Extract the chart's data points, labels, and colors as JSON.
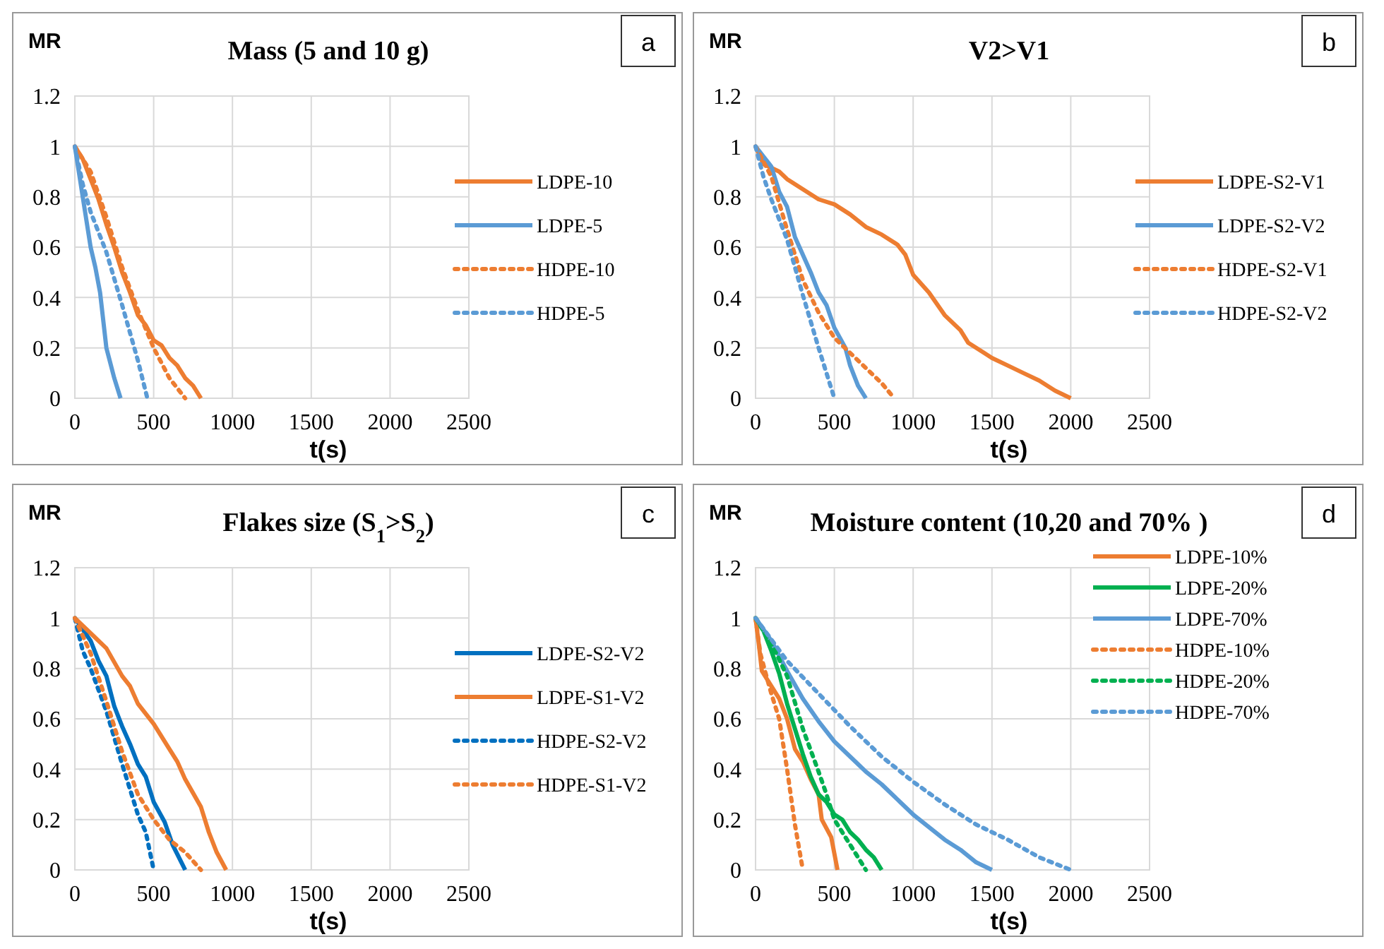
{
  "chart_data": [
    {
      "type": "line",
      "title": "Mass (5 and 10 g)",
      "ylabel": "MR",
      "xlabel": "t(s)",
      "annotations": [
        "a"
      ],
      "xlim": [
        0,
        2500
      ],
      "xticks": [
        0,
        500,
        1000,
        1500,
        2000,
        2500
      ],
      "ylim": [
        0,
        1.2
      ],
      "yticks": [
        0,
        0.2,
        0.4,
        0.6,
        0.8,
        1,
        1.2
      ],
      "grid": true,
      "legend": "right",
      "marker": "none",
      "series": [
        {
          "name": "LDPE-10",
          "color": "#ed7d31",
          "line_style": "solid",
          "x": [
            0,
            50,
            100,
            150,
            200,
            250,
            300,
            350,
            400,
            450,
            500,
            550,
            600,
            650,
            700,
            750,
            800
          ],
          "values": [
            1,
            0.95,
            0.87,
            0.79,
            0.69,
            0.6,
            0.5,
            0.42,
            0.33,
            0.29,
            0.23,
            0.21,
            0.16,
            0.13,
            0.08,
            0.05,
            0
          ]
        },
        {
          "name": "LDPE-5",
          "color": "#5b9bd5",
          "line_style": "solid",
          "x": [
            0,
            50,
            100,
            130,
            160,
            200,
            250,
            290
          ],
          "values": [
            1,
            0.8,
            0.6,
            0.52,
            0.42,
            0.2,
            0.08,
            0
          ]
        },
        {
          "name": "HDPE-10",
          "color": "#ed7d31",
          "line_style": "dotted",
          "x": [
            0,
            100,
            200,
            300,
            400,
            500,
            600,
            700
          ],
          "values": [
            1,
            0.9,
            0.72,
            0.52,
            0.35,
            0.2,
            0.08,
            0
          ]
        },
        {
          "name": "HDPE-5",
          "color": "#5b9bd5",
          "line_style": "dotted",
          "x": [
            0,
            50,
            100,
            200,
            300,
            400,
            460
          ],
          "values": [
            1,
            0.85,
            0.74,
            0.58,
            0.37,
            0.15,
            0
          ]
        }
      ]
    },
    {
      "type": "line",
      "title": "V2>V1",
      "ylabel": "MR",
      "xlabel": "t(s)",
      "annotations": [
        "b"
      ],
      "xlim": [
        0,
        2500
      ],
      "xticks": [
        0,
        500,
        1000,
        1500,
        2000,
        2500
      ],
      "ylim": [
        0,
        1.2
      ],
      "yticks": [
        0,
        0.2,
        0.4,
        0.6,
        0.8,
        1,
        1.2
      ],
      "grid": true,
      "legend": "right",
      "marker": "none",
      "series": [
        {
          "name": "LDPE-S2-V1",
          "color": "#ed7d31",
          "line_style": "solid",
          "x": [
            0,
            50,
            150,
            200,
            300,
            400,
            500,
            600,
            700,
            800,
            900,
            950,
            1000,
            1100,
            1200,
            1300,
            1350,
            1450,
            1500,
            1600,
            1700,
            1800,
            1900,
            2000
          ],
          "values": [
            1,
            0.93,
            0.9,
            0.87,
            0.83,
            0.79,
            0.77,
            0.73,
            0.68,
            0.65,
            0.61,
            0.57,
            0.49,
            0.42,
            0.33,
            0.27,
            0.22,
            0.18,
            0.16,
            0.13,
            0.1,
            0.07,
            0.03,
            0
          ]
        },
        {
          "name": "LDPE-S2-V2",
          "color": "#5b9bd5",
          "line_style": "solid",
          "x": [
            0,
            100,
            150,
            200,
            250,
            300,
            350,
            400,
            450,
            500,
            570,
            600,
            650,
            700
          ],
          "values": [
            1,
            0.92,
            0.82,
            0.76,
            0.64,
            0.57,
            0.5,
            0.42,
            0.37,
            0.28,
            0.2,
            0.13,
            0.05,
            0
          ]
        },
        {
          "name": "HDPE-S2-V1",
          "color": "#ed7d31",
          "line_style": "dotted",
          "x": [
            0,
            100,
            200,
            300,
            400,
            500,
            600,
            700,
            800,
            880
          ],
          "values": [
            1,
            0.88,
            0.67,
            0.47,
            0.34,
            0.24,
            0.18,
            0.12,
            0.06,
            0
          ]
        },
        {
          "name": "HDPE-S2-V2",
          "color": "#5b9bd5",
          "line_style": "dotted",
          "x": [
            0,
            50,
            100,
            200,
            300,
            400,
            500
          ],
          "values": [
            1,
            0.88,
            0.79,
            0.63,
            0.41,
            0.2,
            0
          ]
        }
      ]
    },
    {
      "type": "line",
      "title": "Flakes size (S$_{1}$>S$_{2}$)",
      "ylabel": "MR",
      "xlabel": "t(s)",
      "annotations": [
        "c"
      ],
      "xlim": [
        0,
        2500
      ],
      "xticks": [
        0,
        500,
        1000,
        1500,
        2000,
        2500
      ],
      "ylim": [
        0,
        1.2
      ],
      "yticks": [
        0,
        0.2,
        0.4,
        0.6,
        0.8,
        1,
        1.2
      ],
      "grid": true,
      "legend": "right",
      "marker": "none",
      "series": [
        {
          "name": "LDPE-S2-V2",
          "color": "#0070c0",
          "line_style": "solid",
          "x": [
            0,
            100,
            150,
            200,
            250,
            300,
            350,
            400,
            450,
            500,
            570,
            620,
            700
          ],
          "values": [
            1,
            0.91,
            0.83,
            0.77,
            0.65,
            0.57,
            0.5,
            0.42,
            0.37,
            0.27,
            0.19,
            0.1,
            0
          ]
        },
        {
          "name": "LDPE-S1-V2",
          "color": "#ed7d31",
          "line_style": "solid",
          "x": [
            0,
            100,
            200,
            300,
            350,
            400,
            500,
            600,
            650,
            700,
            800,
            850,
            900,
            960
          ],
          "values": [
            1,
            0.94,
            0.88,
            0.77,
            0.73,
            0.66,
            0.58,
            0.48,
            0.43,
            0.36,
            0.25,
            0.15,
            0.07,
            0
          ]
        },
        {
          "name": "HDPE-S2-V2",
          "color": "#0070c0",
          "line_style": "dotted",
          "x": [
            0,
            50,
            100,
            200,
            300,
            400,
            450,
            500
          ],
          "values": [
            1,
            0.87,
            0.8,
            0.63,
            0.42,
            0.22,
            0.15,
            0
          ]
        },
        {
          "name": "HDPE-S1-V2",
          "color": "#ed7d31",
          "line_style": "dotted",
          "x": [
            0,
            100,
            200,
            300,
            400,
            500,
            600,
            700,
            800
          ],
          "values": [
            1,
            0.86,
            0.67,
            0.47,
            0.3,
            0.2,
            0.12,
            0.07,
            0
          ]
        }
      ]
    },
    {
      "type": "line",
      "title": "Moisture content (10,20 and 70% )",
      "ylabel": "MR",
      "xlabel": "t(s)",
      "annotations": [
        "d"
      ],
      "xlim": [
        0,
        2500
      ],
      "xticks": [
        0,
        500,
        1000,
        1500,
        2000,
        2500
      ],
      "ylim": [
        0,
        1.2
      ],
      "yticks": [
        0,
        0.2,
        0.4,
        0.6,
        0.8,
        1,
        1.2
      ],
      "grid": true,
      "legend": "top right",
      "marker": "none",
      "series": [
        {
          "name": "LDPE-10%",
          "color": "#ed7d31",
          "line_style": "solid",
          "x": [
            0,
            20,
            40,
            100,
            150,
            200,
            250,
            300,
            350,
            400,
            420,
            480,
            520
          ],
          "values": [
            1,
            0.9,
            0.79,
            0.73,
            0.68,
            0.6,
            0.48,
            0.43,
            0.36,
            0.3,
            0.2,
            0.13,
            0
          ]
        },
        {
          "name": "LDPE-20%",
          "color": "#00b050",
          "line_style": "solid",
          "x": [
            0,
            50,
            100,
            150,
            200,
            250,
            300,
            350,
            400,
            450,
            500,
            550,
            600,
            650,
            700,
            750,
            800
          ],
          "values": [
            1,
            0.95,
            0.87,
            0.78,
            0.66,
            0.56,
            0.46,
            0.37,
            0.3,
            0.27,
            0.22,
            0.2,
            0.15,
            0.12,
            0.08,
            0.05,
            0
          ]
        },
        {
          "name": "LDPE-70%",
          "color": "#5b9bd5",
          "line_style": "solid",
          "x": [
            0,
            100,
            200,
            300,
            400,
            500,
            600,
            700,
            800,
            900,
            1000,
            1100,
            1200,
            1300,
            1400,
            1500
          ],
          "values": [
            1,
            0.91,
            0.79,
            0.68,
            0.59,
            0.51,
            0.45,
            0.39,
            0.34,
            0.28,
            0.22,
            0.17,
            0.12,
            0.08,
            0.03,
            0
          ]
        },
        {
          "name": "HDPE-10%",
          "color": "#ed7d31",
          "line_style": "dotted",
          "x": [
            0,
            30,
            60,
            100,
            150,
            200,
            250,
            300
          ],
          "values": [
            1,
            0.86,
            0.79,
            0.7,
            0.6,
            0.4,
            0.18,
            0
          ]
        },
        {
          "name": "HDPE-20%",
          "color": "#00b050",
          "line_style": "dotted",
          "x": [
            0,
            100,
            200,
            300,
            400,
            450,
            500,
            600,
            700
          ],
          "values": [
            1,
            0.9,
            0.77,
            0.56,
            0.39,
            0.3,
            0.2,
            0.1,
            0
          ]
        },
        {
          "name": "HDPE-70%",
          "color": "#5b9bd5",
          "line_style": "dotted",
          "x": [
            0,
            200,
            400,
            600,
            800,
            1000,
            1200,
            1400,
            1600,
            1800,
            2000
          ],
          "values": [
            1,
            0.83,
            0.7,
            0.57,
            0.45,
            0.35,
            0.26,
            0.18,
            0.12,
            0.05,
            0
          ]
        }
      ]
    }
  ]
}
